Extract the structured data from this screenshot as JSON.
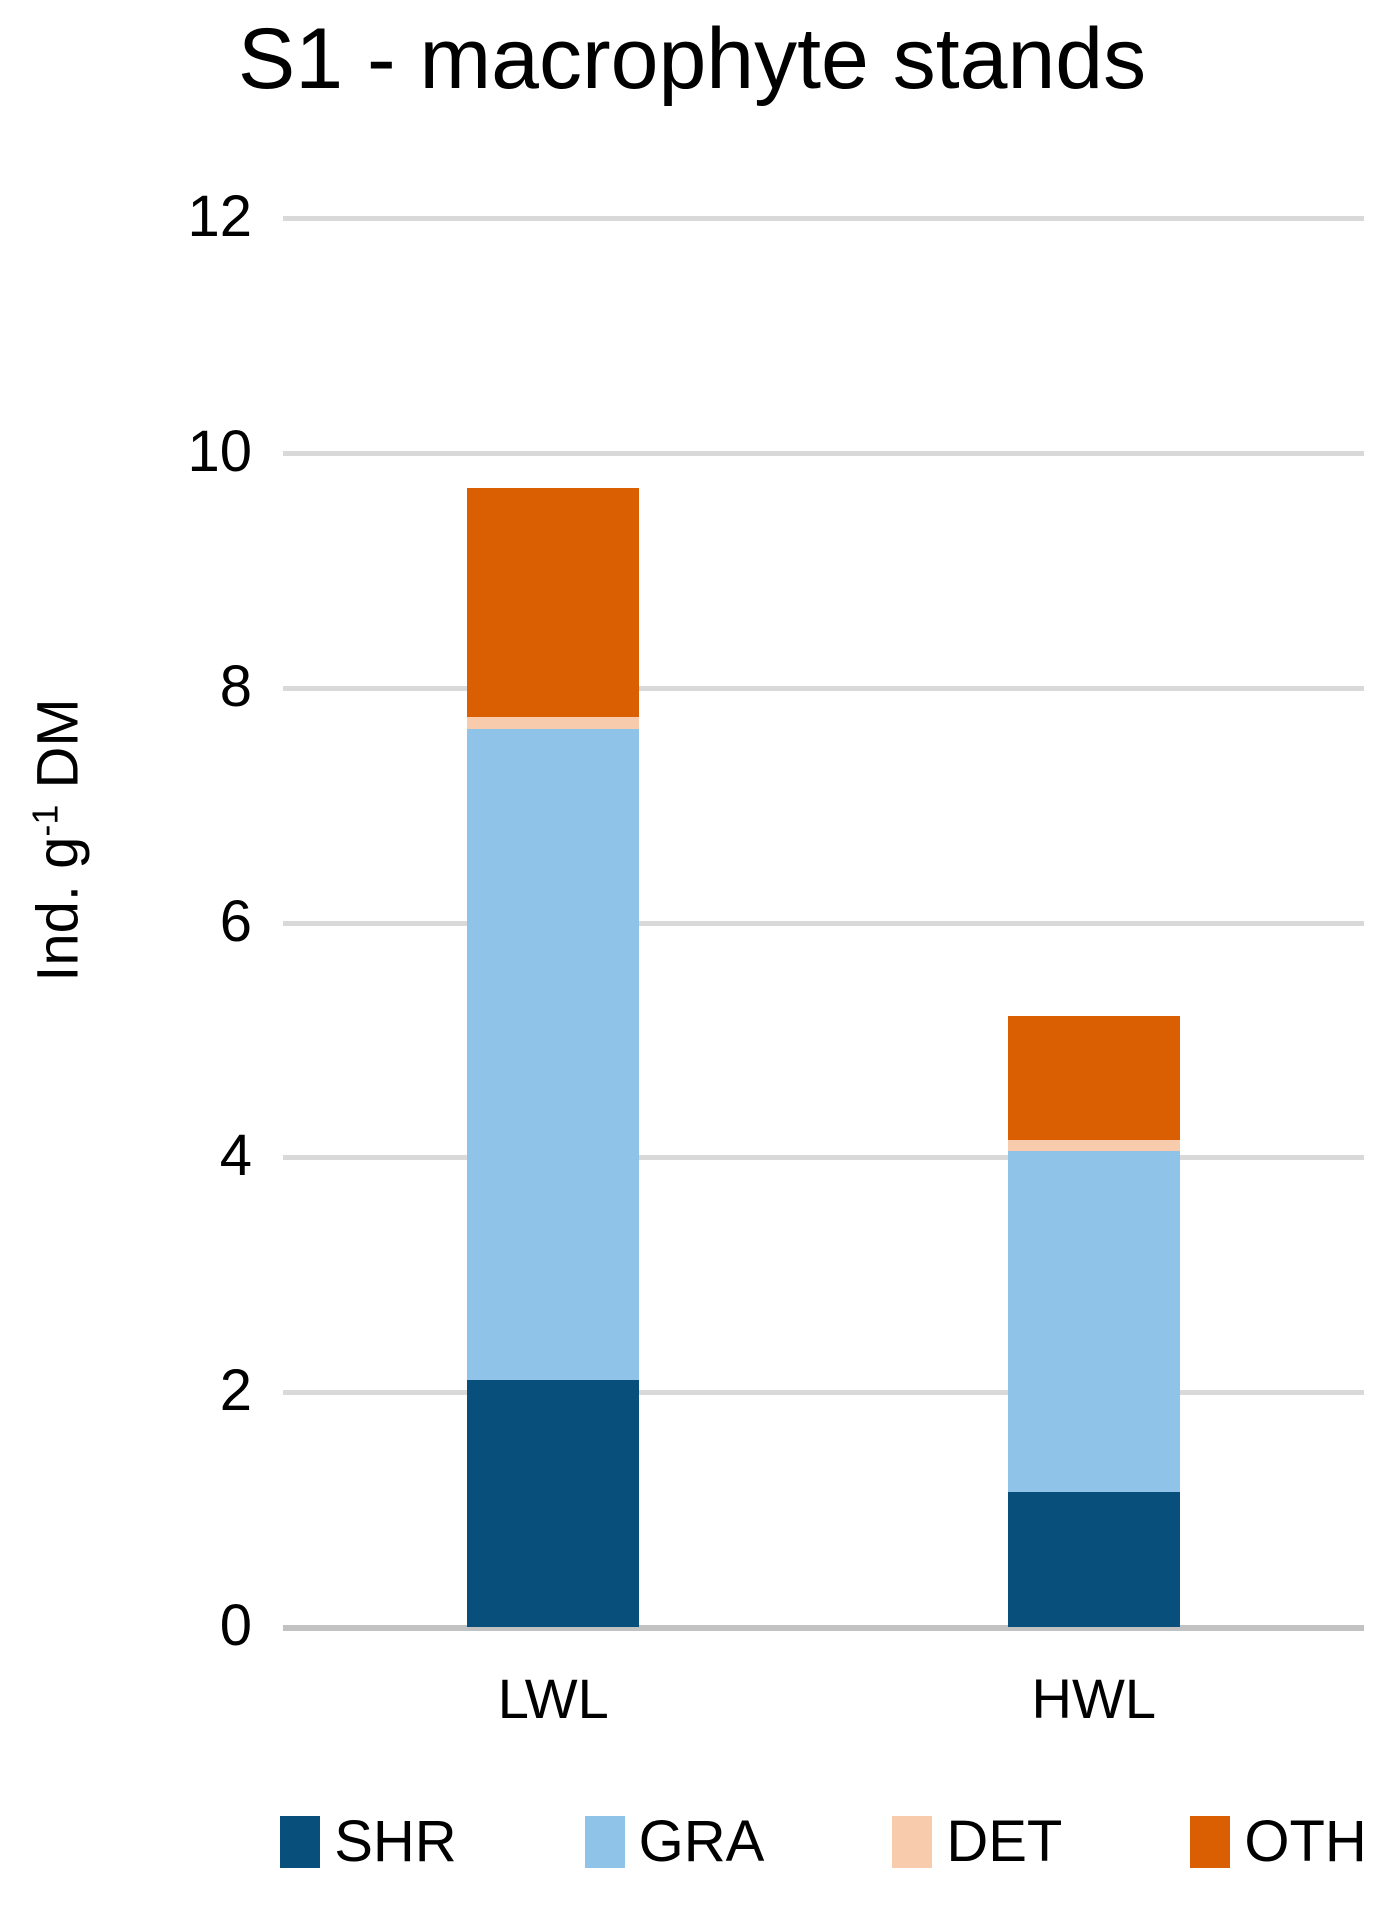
{
  "figure": {
    "title": "S1 - macrophyte stands",
    "y_axis": {
      "label_prefix": "Ind. g",
      "label_superscript": "-1",
      "label_suffix": " DM"
    }
  },
  "chart_data": {
    "type": "bar",
    "stacked": true,
    "title": "S1 - macrophyte stands",
    "ylabel": "Ind. g^-1 DM",
    "xlabel": "",
    "categories": [
      "LWL",
      "HWL"
    ],
    "series": [
      {
        "name": "SHR",
        "color": "#084F7B",
        "values": [
          2.1,
          1.15
        ]
      },
      {
        "name": "GRA",
        "color": "#8FC3E7",
        "values": [
          5.55,
          2.9
        ]
      },
      {
        "name": "DET",
        "color": "#F8CBAD",
        "values": [
          0.1,
          0.1
        ]
      },
      {
        "name": "OTH",
        "color": "#D95F02",
        "values": [
          1.95,
          1.05
        ]
      }
    ],
    "totals": [
      9.7,
      5.2
    ],
    "ylim": [
      0,
      12
    ],
    "yticks": [
      0,
      2,
      4,
      6,
      8,
      10,
      12
    ],
    "grid": true,
    "gridline_color": "#D9D9D9",
    "baseline_color": "#C2C2C2",
    "legend_position": "bottom",
    "legend_entries": [
      "SHR",
      "GRA",
      "DET",
      "OTH"
    ]
  }
}
